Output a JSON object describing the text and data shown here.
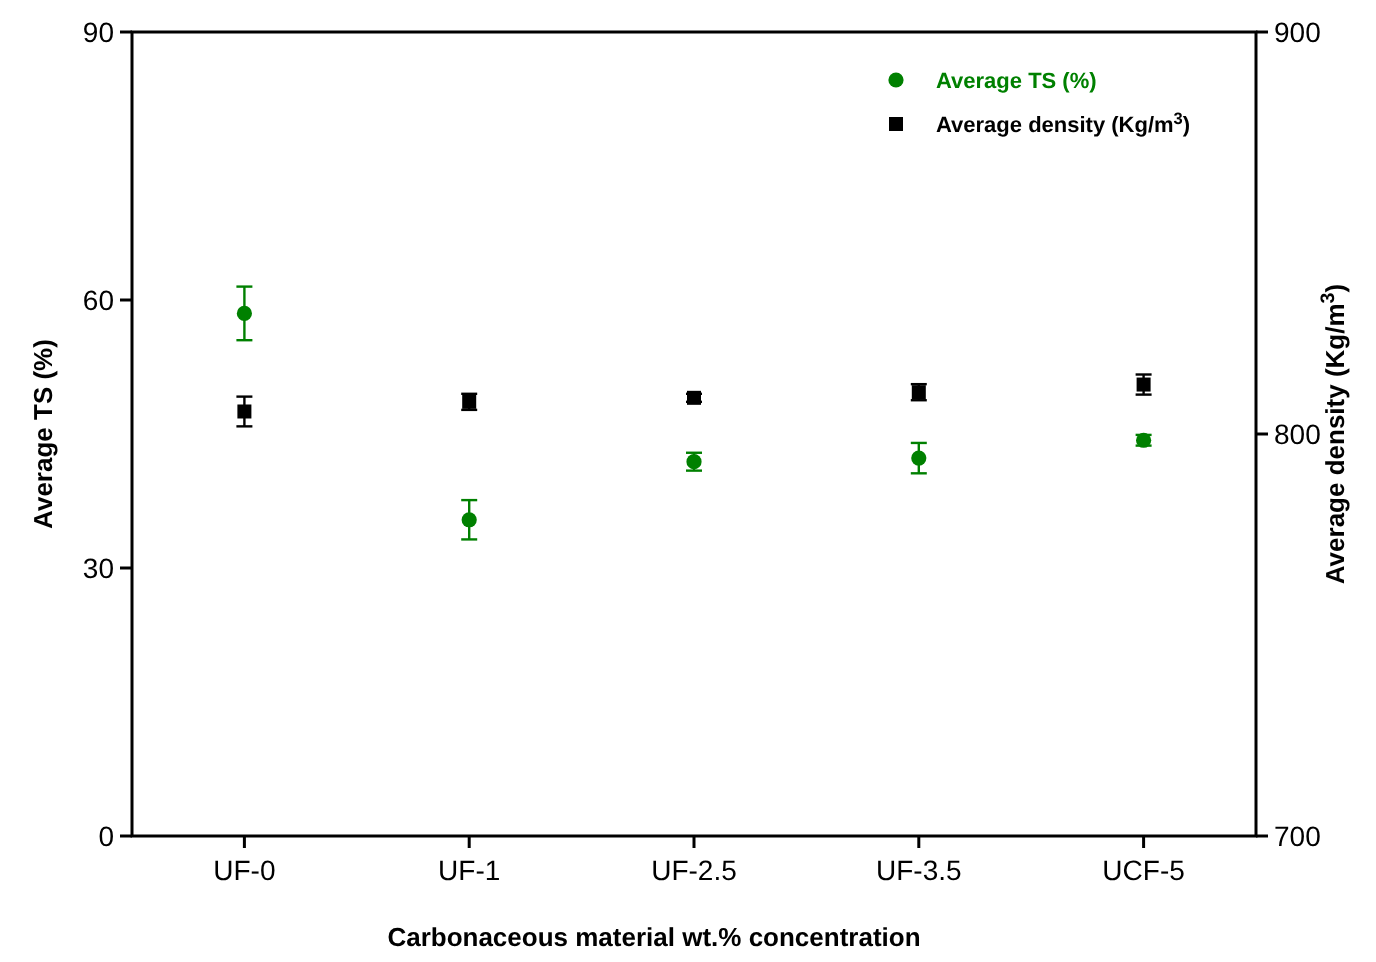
{
  "chart_data": {
    "type": "scatter",
    "xlabel": "Carbonaceous material wt.% concentration",
    "ylabel": "Average TS (%)",
    "y2label": "Average density (Kg/m$^{3}$)",
    "categories": [
      "UF-0",
      "UF-1",
      "UF-2.5",
      "UF-3.5",
      "UCF-5"
    ],
    "ylim": [
      0,
      90
    ],
    "yticks": [
      0,
      30,
      60,
      90
    ],
    "y2lim": [
      700,
      900
    ],
    "y2ticks": [
      700,
      800,
      900
    ],
    "legend": "top right",
    "grid": false,
    "series": [
      {
        "name": "Average TS (%)",
        "color": "#008000",
        "marker": "circle",
        "values": [
          58.5,
          35.4,
          41.9,
          42.3,
          44.3
        ],
        "errors": [
          3,
          2.2,
          1,
          1.7,
          0.6
        ]
      },
      {
        "name": "Average density (Kg/m$^{3}$)",
        "color": "#000000",
        "marker": "square",
        "axis": "y2",
        "values": [
          805.6,
          808,
          809,
          810.4,
          812.3
        ],
        "errors": [
          3.7,
          2,
          1,
          2,
          2.5
        ]
      }
    ]
  }
}
